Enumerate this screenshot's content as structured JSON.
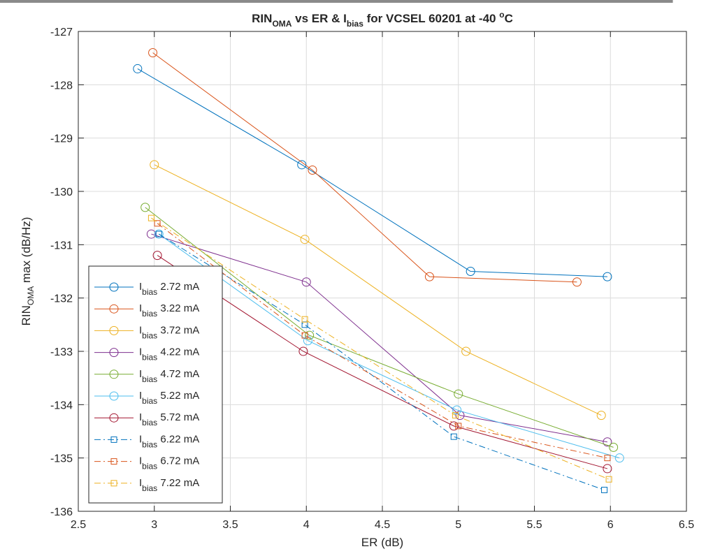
{
  "chart_data": {
    "type": "line",
    "title": {
      "parts": [
        {
          "text": "RIN",
          "sub": false
        },
        {
          "text": "OMA",
          "sub": true
        },
        {
          "text": " vs ER & I",
          "sub": false
        },
        {
          "text": "bias",
          "sub": true
        },
        {
          "text": " for VCSEL 60201 at -40 ",
          "sub": false
        },
        {
          "text": "o",
          "sup": true
        },
        {
          "text": "C",
          "sub": false
        }
      ]
    },
    "xlabel": "ER (dB)",
    "ylabel": {
      "main": "RIN",
      "sub": "OMA",
      "rest": " max (dB/Hz)"
    },
    "xlim": [
      2.5,
      6.5
    ],
    "ylim": [
      -136,
      -127
    ],
    "xticks": [
      2.5,
      3,
      3.5,
      4,
      4.5,
      5,
      5.5,
      6,
      6.5
    ],
    "xtick_labels": [
      "2.5",
      "3",
      "3.5",
      "4",
      "4.5",
      "5",
      "5.5",
      "6",
      "6.5"
    ],
    "yticks": [
      -136,
      -135,
      -134,
      -133,
      -132,
      -131,
      -130,
      -129,
      -128,
      -127
    ],
    "ytick_labels": [
      "-136",
      "-135",
      "-134",
      "-133",
      "-132",
      "-131",
      "-130",
      "-129",
      "-128",
      "-127"
    ],
    "grid": true,
    "legend_position": "bottom-left",
    "series": [
      {
        "label_main": "I",
        "label_sub": "bias",
        "label_rest": " 2.72 mA",
        "color": "#0072BD",
        "marker": "circle",
        "dash": "solid",
        "x": [
          2.89,
          3.97,
          5.08,
          5.98
        ],
        "y": [
          -127.7,
          -129.5,
          -131.5,
          -131.6
        ]
      },
      {
        "label_main": "I",
        "label_sub": "bias",
        "label_rest": " 3.22 mA",
        "color": "#D95319",
        "marker": "circle",
        "dash": "solid",
        "x": [
          2.99,
          4.04,
          4.81,
          5.78
        ],
        "y": [
          -127.4,
          -129.6,
          -131.6,
          -131.7
        ]
      },
      {
        "label_main": "I",
        "label_sub": "bias",
        "label_rest": " 3.72 mA",
        "color": "#EDB120",
        "marker": "circle",
        "dash": "solid",
        "x": [
          3.0,
          3.99,
          5.05,
          5.94
        ],
        "y": [
          -129.5,
          -130.9,
          -133.0,
          -134.2
        ]
      },
      {
        "label_main": "I",
        "label_sub": "bias",
        "label_rest": " 4.22 mA",
        "color": "#7E2F8E",
        "marker": "circle",
        "dash": "solid",
        "x": [
          2.98,
          4.0,
          5.01,
          5.98
        ],
        "y": [
          -130.8,
          -131.7,
          -134.2,
          -134.7
        ]
      },
      {
        "label_main": "I",
        "label_sub": "bias",
        "label_rest": " 4.72 mA",
        "color": "#77AC30",
        "marker": "circle",
        "dash": "solid",
        "x": [
          2.94,
          4.02,
          5.0,
          6.02
        ],
        "y": [
          -130.3,
          -132.7,
          -133.8,
          -134.8
        ]
      },
      {
        "label_main": "I",
        "label_sub": "bias",
        "label_rest": " 5.22 mA",
        "color": "#4DBEEE",
        "marker": "circle",
        "dash": "solid",
        "x": [
          3.03,
          4.01,
          4.99,
          6.06
        ],
        "y": [
          -130.8,
          -132.8,
          -134.1,
          -135.0
        ]
      },
      {
        "label_main": "I",
        "label_sub": "bias",
        "label_rest": " 5.72 mA",
        "color": "#A2142F",
        "marker": "circle",
        "dash": "solid",
        "x": [
          3.02,
          3.98,
          4.97,
          5.98
        ],
        "y": [
          -131.2,
          -133.0,
          -134.4,
          -135.2
        ]
      },
      {
        "label_main": "I",
        "label_sub": "bias",
        "label_rest": " 6.22 mA",
        "color": "#0072BD",
        "marker": "square",
        "dash": "dashdot",
        "x": [
          3.03,
          3.99,
          4.97,
          5.96
        ],
        "y": [
          -130.8,
          -132.5,
          -134.6,
          -135.6
        ]
      },
      {
        "label_main": "I",
        "label_sub": "bias",
        "label_rest": " 6.72 mA",
        "color": "#D95319",
        "marker": "square",
        "dash": "dashdot",
        "x": [
          3.02,
          3.99,
          5.0,
          5.98
        ],
        "y": [
          -130.6,
          -132.7,
          -134.4,
          -135.0
        ]
      },
      {
        "label_main": "I",
        "label_sub": "bias",
        "label_rest": " 7.22 mA",
        "color": "#EDB120",
        "marker": "square",
        "dash": "dashdot",
        "x": [
          2.98,
          3.99,
          4.98,
          5.99
        ],
        "y": [
          -130.5,
          -132.4,
          -134.2,
          -135.4
        ]
      }
    ]
  }
}
